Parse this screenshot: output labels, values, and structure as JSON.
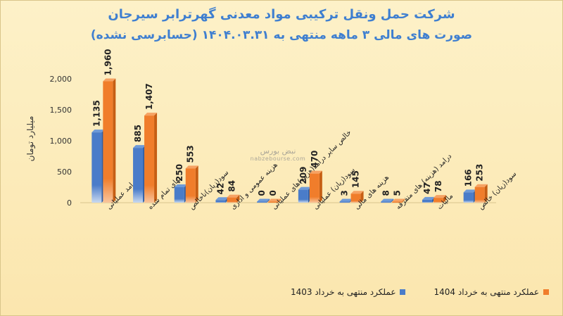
{
  "title": "شرکت حمل ونقل ترکیبی مواد معدنی گهرترابر سیرجان",
  "subtitle": "صورت های مالی ۳ ماهه منتهی به ۱۴۰۴.۰۳.۳۱ (حسابرسی نشده)",
  "ylabel": "میلیارد تومان",
  "watermark": {
    "brand": "نبض بورس",
    "site": "nabzebourse.com"
  },
  "colors": {
    "series_1403": "#4a7cc9",
    "series_1404": "#f07d2b",
    "background": "#fbe9b7",
    "title": "#3f7fd0"
  },
  "chart_data": {
    "type": "bar",
    "categories": [
      "درامد عملیاتی",
      "بهای تمام شده",
      "سود(زیان)ناخالص",
      "هزینه عمومی و اداری",
      "خالص سایر درامد(هزینه)های عملیاتی",
      "سود(زیان) عملیاتی",
      "هزینه های مالی",
      "درامد (هزینه) های متفرقه",
      "مالیات",
      "سود(زیان) خالص"
    ],
    "series": [
      {
        "name": "عملکرد منتهی به خرداد 1403",
        "values": [
          1135,
          885,
          250,
          42,
          0,
          209,
          3,
          8,
          47,
          166
        ]
      },
      {
        "name": "عملکرد منتهی به خرداد 1404",
        "values": [
          1960,
          1407,
          553,
          84,
          0,
          470,
          145,
          5,
          78,
          253
        ]
      }
    ],
    "data_labels": [
      [
        "1,135",
        "885",
        "250",
        "42",
        "0",
        "209",
        "3",
        "8",
        "47",
        "166"
      ],
      [
        "1,960",
        "1,407",
        "553",
        "84",
        "0",
        "470",
        "145",
        "5",
        "78",
        "253"
      ]
    ],
    "yticks": [
      "0",
      "500",
      "1,000",
      "1,500",
      "2,000"
    ],
    "ylim": [
      0,
      2000
    ],
    "grid": false,
    "legend": "bottom-right"
  }
}
